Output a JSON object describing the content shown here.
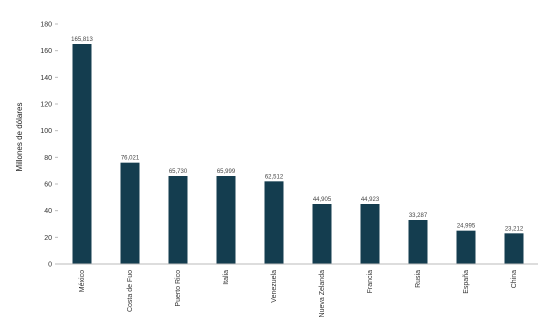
{
  "chart_data": {
    "type": "bar",
    "ylabel": "Millones de dólares",
    "xlabel": "",
    "ylim": [
      0,
      180
    ],
    "yticks": [
      0,
      20,
      40,
      60,
      80,
      100,
      120,
      140,
      160,
      180
    ],
    "grid": false,
    "bar_color": "#143d4f",
    "categories": [
      "México",
      "Costa de Fuo",
      "Puerto Rico",
      "Italia",
      "Venezuela",
      "Nueva Zelanda",
      "Francia",
      "Rusia",
      "España",
      "China"
    ],
    "values": [
      165,
      76,
      66,
      66,
      62,
      45,
      45,
      33,
      25,
      23
    ],
    "value_labels": [
      "165,813",
      "76,021",
      "65,730",
      "65,999",
      "62,512",
      "44,905",
      "44,923",
      "33,287",
      "24,995",
      "23,212"
    ]
  }
}
